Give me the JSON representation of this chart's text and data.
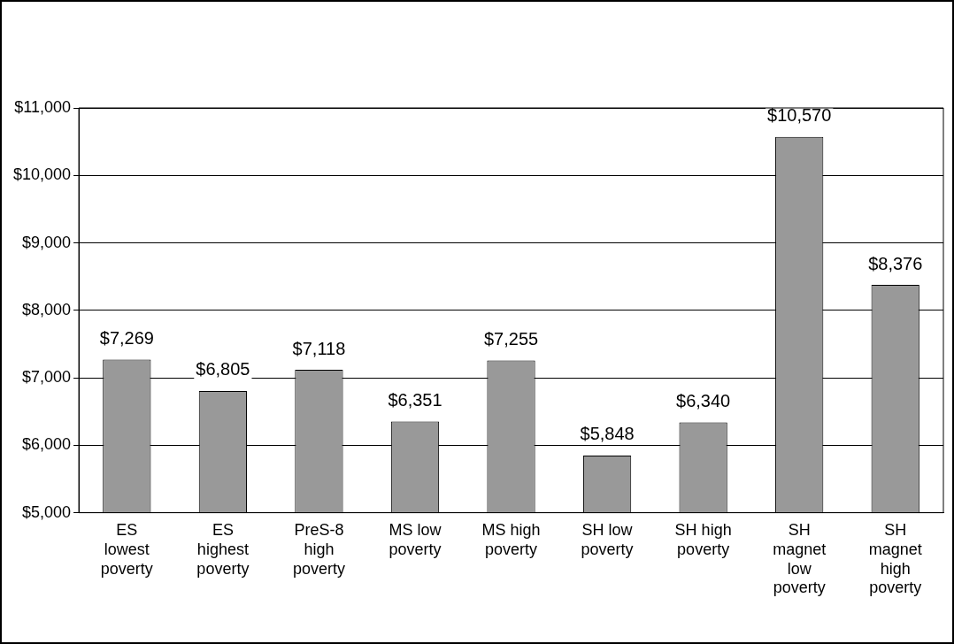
{
  "chart_data": {
    "type": "bar",
    "categories": [
      "ES lowest poverty",
      "ES highest poverty",
      "PreS-8 high poverty",
      "MS low poverty",
      "MS high poverty",
      "SH low poverty",
      "SH high poverty",
      "SH magnet low poverty",
      "SH magnet high poverty"
    ],
    "values": [
      7269,
      6805,
      7118,
      6351,
      7255,
      5848,
      6340,
      10570,
      8376
    ],
    "value_labels": [
      "$7,269",
      "$6,805",
      "$7,118",
      "$6,351",
      "$7,255",
      "$5,848",
      "$6,340",
      "$10,570",
      "$8,376"
    ],
    "color": "#999999",
    "ylim": [
      5000,
      11000
    ],
    "yticks": [
      {
        "value": 5000,
        "label": "$5,000"
      },
      {
        "value": 6000,
        "label": "$6,000"
      },
      {
        "value": 7000,
        "label": "$7,000"
      },
      {
        "value": 8000,
        "label": "$8,000"
      },
      {
        "value": 9000,
        "label": "$9,000"
      },
      {
        "value": 10000,
        "label": "$10,000"
      },
      {
        "value": 11000,
        "label": "$11,000"
      }
    ],
    "grid": "y"
  }
}
